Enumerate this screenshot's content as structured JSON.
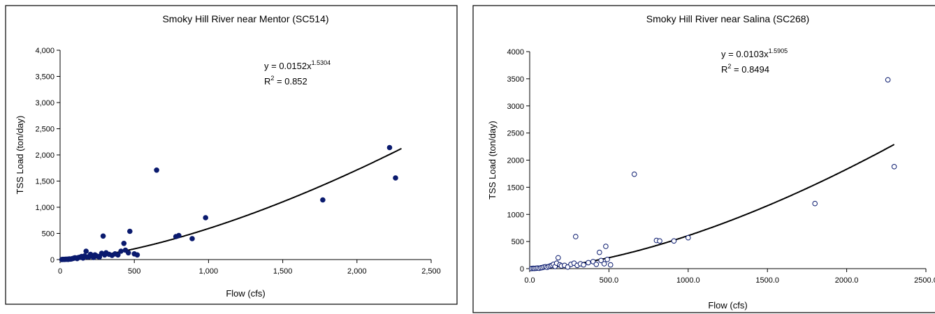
{
  "chart_data": [
    {
      "type": "scatter",
      "title": "Smoky Hill River near Mentor (SC514)",
      "xlabel": "Flow (cfs)",
      "ylabel": "TSS Load (ton/day)",
      "xlim": [
        0,
        2500
      ],
      "ylim": [
        0,
        4000
      ],
      "xticks": [
        0,
        500,
        1000,
        1500,
        2000,
        2500
      ],
      "xtick_labels": [
        "0",
        "500",
        "1,000",
        "1,500",
        "2,000",
        "2,500"
      ],
      "yticks": [
        0,
        500,
        1000,
        1500,
        2000,
        2500,
        3000,
        3500,
        4000
      ],
      "ytick_labels": [
        "0",
        "500",
        "1,000",
        "1,500",
        "2,000",
        "2,500",
        "3,000",
        "3,500",
        "4,000"
      ],
      "marker": "filled-circle",
      "marker_color": "#0a1a6e",
      "grid": false,
      "trendline": {
        "type": "power",
        "a": 0.0152,
        "b": 1.5304,
        "equation": "y = 0.0152x",
        "exponent": "1.5304",
        "r2_label": "R",
        "r2_value": " = 0.852"
      },
      "points": [
        [
          12,
          2
        ],
        [
          20,
          4
        ],
        [
          28,
          3
        ],
        [
          35,
          6
        ],
        [
          42,
          5
        ],
        [
          50,
          8
        ],
        [
          55,
          4
        ],
        [
          62,
          12
        ],
        [
          70,
          10
        ],
        [
          78,
          15
        ],
        [
          85,
          20
        ],
        [
          92,
          25
        ],
        [
          100,
          35
        ],
        [
          108,
          30
        ],
        [
          115,
          18
        ],
        [
          125,
          40
        ],
        [
          135,
          45
        ],
        [
          145,
          60
        ],
        [
          155,
          30
        ],
        [
          165,
          70
        ],
        [
          175,
          160
        ],
        [
          185,
          50
        ],
        [
          195,
          55
        ],
        [
          205,
          100
        ],
        [
          215,
          80
        ],
        [
          225,
          40
        ],
        [
          235,
          90
        ],
        [
          245,
          70
        ],
        [
          255,
          60
        ],
        [
          265,
          50
        ],
        [
          280,
          120
        ],
        [
          290,
          450
        ],
        [
          300,
          90
        ],
        [
          310,
          130
        ],
        [
          330,
          100
        ],
        [
          350,
          80
        ],
        [
          370,
          110
        ],
        [
          390,
          90
        ],
        [
          410,
          160
        ],
        [
          430,
          310
        ],
        [
          440,
          180
        ],
        [
          460,
          130
        ],
        [
          470,
          540
        ],
        [
          500,
          110
        ],
        [
          520,
          90
        ],
        [
          650,
          1710
        ],
        [
          780,
          440
        ],
        [
          800,
          460
        ],
        [
          890,
          400
        ],
        [
          980,
          800
        ],
        [
          1770,
          1140
        ],
        [
          2220,
          2140
        ],
        [
          2260,
          1560
        ]
      ]
    },
    {
      "type": "scatter",
      "title": "Smoky Hill River near Salina (SC268)",
      "xlabel": "Flow (cfs)",
      "ylabel": "TSS Load (ton/day)",
      "xlim": [
        0,
        2500
      ],
      "ylim": [
        0,
        4000
      ],
      "xticks": [
        0,
        500,
        1000,
        1500,
        2000,
        2500
      ],
      "xtick_labels": [
        "0.0",
        "500.0",
        "1000.0",
        "1500.0",
        "2000.0",
        "2500.0"
      ],
      "yticks": [
        0,
        500,
        1000,
        1500,
        2000,
        2500,
        3000,
        3500,
        4000
      ],
      "ytick_labels": [
        "0",
        "500",
        "1000",
        "1500",
        "2000",
        "2500",
        "3000",
        "3500",
        "4000"
      ],
      "marker": "open-circle",
      "marker_color": "#0a1a6e",
      "grid": false,
      "trendline": {
        "type": "power",
        "a": 0.0103,
        "b": 1.5905,
        "equation": "y = 0.0103x",
        "exponent": "1.5905",
        "r2_label": "R",
        "r2_value": " = 0.8494"
      },
      "points": [
        [
          12,
          2
        ],
        [
          22,
          5
        ],
        [
          30,
          4
        ],
        [
          40,
          8
        ],
        [
          50,
          10
        ],
        [
          60,
          6
        ],
        [
          70,
          15
        ],
        [
          80,
          20
        ],
        [
          90,
          30
        ],
        [
          100,
          35
        ],
        [
          110,
          25
        ],
        [
          120,
          40
        ],
        [
          130,
          50
        ],
        [
          140,
          60
        ],
        [
          150,
          80
        ],
        [
          160,
          40
        ],
        [
          170,
          100
        ],
        [
          180,
          200
        ],
        [
          190,
          70
        ],
        [
          200,
          50
        ],
        [
          220,
          60
        ],
        [
          240,
          30
        ],
        [
          260,
          80
        ],
        [
          280,
          100
        ],
        [
          290,
          590
        ],
        [
          300,
          60
        ],
        [
          320,
          90
        ],
        [
          340,
          70
        ],
        [
          370,
          110
        ],
        [
          400,
          130
        ],
        [
          420,
          80
        ],
        [
          440,
          300
        ],
        [
          450,
          150
        ],
        [
          470,
          90
        ],
        [
          480,
          410
        ],
        [
          490,
          170
        ],
        [
          510,
          70
        ],
        [
          660,
          1740
        ],
        [
          800,
          520
        ],
        [
          820,
          510
        ],
        [
          910,
          510
        ],
        [
          1000,
          570
        ],
        [
          1800,
          1200
        ],
        [
          2260,
          3480
        ],
        [
          2300,
          1880
        ]
      ]
    }
  ]
}
